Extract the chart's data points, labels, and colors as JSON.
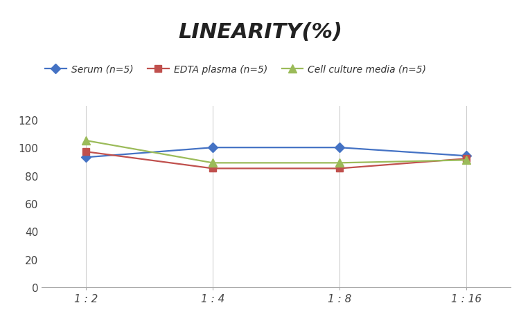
{
  "x_labels": [
    "1 : 2",
    "1 : 4",
    "1 : 8",
    "1 : 16"
  ],
  "x_positions": [
    0,
    1,
    2,
    3
  ],
  "series": [
    {
      "label": "Serum (n=5)",
      "values": [
        93,
        100,
        100,
        94
      ],
      "color": "#4472C4",
      "marker": "D",
      "markersize": 7,
      "linewidth": 1.6
    },
    {
      "label": "EDTA plasma (n=5)",
      "values": [
        97,
        85,
        85,
        92
      ],
      "color": "#C0504D",
      "marker": "s",
      "markersize": 7,
      "linewidth": 1.6
    },
    {
      "label": "Cell culture media (n=5)",
      "values": [
        105,
        89,
        89,
        91
      ],
      "color": "#9BBB59",
      "marker": "^",
      "markersize": 8,
      "linewidth": 1.6
    }
  ],
  "title": "LINEARITY(%)",
  "title_fontsize": 22,
  "title_fontstyle": "italic",
  "title_fontweight": "bold",
  "ylim": [
    0,
    130
  ],
  "yticks": [
    0,
    20,
    40,
    60,
    80,
    100,
    120
  ],
  "ylabel_fontsize": 11,
  "xlabel_fontsize": 11,
  "legend_fontsize": 10,
  "grid_color": "#D0D0D0",
  "background_color": "#FFFFFF",
  "tick_color": "#555555"
}
